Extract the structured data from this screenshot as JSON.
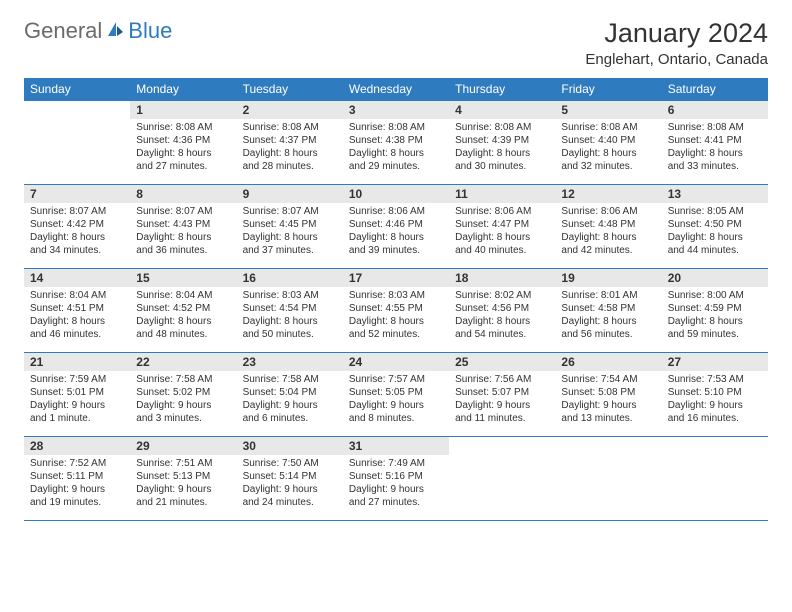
{
  "logo": {
    "part1": "General",
    "part2": "Blue"
  },
  "title": "January 2024",
  "location": "Englehart, Ontario, Canada",
  "colors": {
    "header_bg": "#2f7bbf",
    "header_text": "#ffffff",
    "daynum_bg": "#e8e8e8",
    "text": "#333333",
    "logo_gray": "#6b6b6b",
    "logo_blue": "#2f7bbf",
    "page_bg": "#ffffff"
  },
  "weekdays": [
    "Sunday",
    "Monday",
    "Tuesday",
    "Wednesday",
    "Thursday",
    "Friday",
    "Saturday"
  ],
  "weeks": [
    [
      null,
      {
        "n": "1",
        "sr": "8:08 AM",
        "ss": "4:36 PM",
        "dl": "8 hours and 27 minutes."
      },
      {
        "n": "2",
        "sr": "8:08 AM",
        "ss": "4:37 PM",
        "dl": "8 hours and 28 minutes."
      },
      {
        "n": "3",
        "sr": "8:08 AM",
        "ss": "4:38 PM",
        "dl": "8 hours and 29 minutes."
      },
      {
        "n": "4",
        "sr": "8:08 AM",
        "ss": "4:39 PM",
        "dl": "8 hours and 30 minutes."
      },
      {
        "n": "5",
        "sr": "8:08 AM",
        "ss": "4:40 PM",
        "dl": "8 hours and 32 minutes."
      },
      {
        "n": "6",
        "sr": "8:08 AM",
        "ss": "4:41 PM",
        "dl": "8 hours and 33 minutes."
      }
    ],
    [
      {
        "n": "7",
        "sr": "8:07 AM",
        "ss": "4:42 PM",
        "dl": "8 hours and 34 minutes."
      },
      {
        "n": "8",
        "sr": "8:07 AM",
        "ss": "4:43 PM",
        "dl": "8 hours and 36 minutes."
      },
      {
        "n": "9",
        "sr": "8:07 AM",
        "ss": "4:45 PM",
        "dl": "8 hours and 37 minutes."
      },
      {
        "n": "10",
        "sr": "8:06 AM",
        "ss": "4:46 PM",
        "dl": "8 hours and 39 minutes."
      },
      {
        "n": "11",
        "sr": "8:06 AM",
        "ss": "4:47 PM",
        "dl": "8 hours and 40 minutes."
      },
      {
        "n": "12",
        "sr": "8:06 AM",
        "ss": "4:48 PM",
        "dl": "8 hours and 42 minutes."
      },
      {
        "n": "13",
        "sr": "8:05 AM",
        "ss": "4:50 PM",
        "dl": "8 hours and 44 minutes."
      }
    ],
    [
      {
        "n": "14",
        "sr": "8:04 AM",
        "ss": "4:51 PM",
        "dl": "8 hours and 46 minutes."
      },
      {
        "n": "15",
        "sr": "8:04 AM",
        "ss": "4:52 PM",
        "dl": "8 hours and 48 minutes."
      },
      {
        "n": "16",
        "sr": "8:03 AM",
        "ss": "4:54 PM",
        "dl": "8 hours and 50 minutes."
      },
      {
        "n": "17",
        "sr": "8:03 AM",
        "ss": "4:55 PM",
        "dl": "8 hours and 52 minutes."
      },
      {
        "n": "18",
        "sr": "8:02 AM",
        "ss": "4:56 PM",
        "dl": "8 hours and 54 minutes."
      },
      {
        "n": "19",
        "sr": "8:01 AM",
        "ss": "4:58 PM",
        "dl": "8 hours and 56 minutes."
      },
      {
        "n": "20",
        "sr": "8:00 AM",
        "ss": "4:59 PM",
        "dl": "8 hours and 59 minutes."
      }
    ],
    [
      {
        "n": "21",
        "sr": "7:59 AM",
        "ss": "5:01 PM",
        "dl": "9 hours and 1 minute."
      },
      {
        "n": "22",
        "sr": "7:58 AM",
        "ss": "5:02 PM",
        "dl": "9 hours and 3 minutes."
      },
      {
        "n": "23",
        "sr": "7:58 AM",
        "ss": "5:04 PM",
        "dl": "9 hours and 6 minutes."
      },
      {
        "n": "24",
        "sr": "7:57 AM",
        "ss": "5:05 PM",
        "dl": "9 hours and 8 minutes."
      },
      {
        "n": "25",
        "sr": "7:56 AM",
        "ss": "5:07 PM",
        "dl": "9 hours and 11 minutes."
      },
      {
        "n": "26",
        "sr": "7:54 AM",
        "ss": "5:08 PM",
        "dl": "9 hours and 13 minutes."
      },
      {
        "n": "27",
        "sr": "7:53 AM",
        "ss": "5:10 PM",
        "dl": "9 hours and 16 minutes."
      }
    ],
    [
      {
        "n": "28",
        "sr": "7:52 AM",
        "ss": "5:11 PM",
        "dl": "9 hours and 19 minutes."
      },
      {
        "n": "29",
        "sr": "7:51 AM",
        "ss": "5:13 PM",
        "dl": "9 hours and 21 minutes."
      },
      {
        "n": "30",
        "sr": "7:50 AM",
        "ss": "5:14 PM",
        "dl": "9 hours and 24 minutes."
      },
      {
        "n": "31",
        "sr": "7:49 AM",
        "ss": "5:16 PM",
        "dl": "9 hours and 27 minutes."
      },
      null,
      null,
      null
    ]
  ],
  "labels": {
    "sunrise": "Sunrise: ",
    "sunset": "Sunset: ",
    "daylight": "Daylight: "
  }
}
